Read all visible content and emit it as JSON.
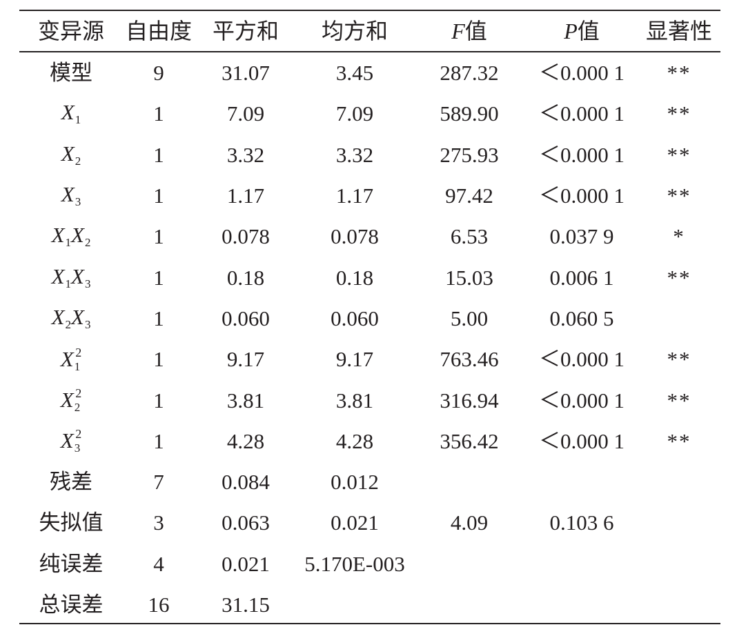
{
  "headers": {
    "source": "变异源",
    "df": "自由度",
    "ss": "平方和",
    "ms": "均方和",
    "f_letter": "F",
    "f_suffix": "值",
    "p_letter": "P",
    "p_suffix": "值",
    "significance": "显著性"
  },
  "rows": [
    {
      "source": "模型",
      "df": "9",
      "ss": "31.07",
      "ms": "3.45",
      "f": "287.32",
      "p": "＜0.000 1",
      "sig": "**"
    },
    {
      "source_var": "X",
      "source_sub": "1",
      "df": "1",
      "ss": "7.09",
      "ms": "7.09",
      "f": "589.90",
      "p": "＜0.000 1",
      "sig": "**"
    },
    {
      "source_var": "X",
      "source_sub": "2",
      "df": "1",
      "ss": "3.32",
      "ms": "3.32",
      "f": "275.93",
      "p": "＜0.000 1",
      "sig": "**"
    },
    {
      "source_var": "X",
      "source_sub": "3",
      "df": "1",
      "ss": "1.17",
      "ms": "1.17",
      "f": "97.42",
      "p": "＜0.000 1",
      "sig": "**"
    },
    {
      "source_var": "X",
      "source_sub": "1",
      "source_var2": "X",
      "source_sub2": "2",
      "df": "1",
      "ss": "0.078",
      "ms": "0.078",
      "f": "6.53",
      "p": "0.037 9",
      "sig": "*"
    },
    {
      "source_var": "X",
      "source_sub": "1",
      "source_var2": "X",
      "source_sub2": "3",
      "df": "1",
      "ss": "0.18",
      "ms": "0.18",
      "f": "15.03",
      "p": "0.006 1",
      "sig": "**"
    },
    {
      "source_var": "X",
      "source_sub": "2",
      "source_var2": "X",
      "source_sub2": "3",
      "df": "1",
      "ss": "0.060",
      "ms": "0.060",
      "f": "5.00",
      "p": "0.060 5",
      "sig": ""
    },
    {
      "source_var": "X",
      "source_sub": "1",
      "source_sup": "2",
      "df": "1",
      "ss": "9.17",
      "ms": "9.17",
      "f": "763.46",
      "p": "＜0.000 1",
      "sig": "**"
    },
    {
      "source_var": "X",
      "source_sub": "2",
      "source_sup": "2",
      "df": "1",
      "ss": "3.81",
      "ms": "3.81",
      "f": "316.94",
      "p": "＜0.000 1",
      "sig": "**"
    },
    {
      "source_var": "X",
      "source_sub": "3",
      "source_sup": "2",
      "df": "1",
      "ss": "4.28",
      "ms": "4.28",
      "f": "356.42",
      "p": "＜0.000 1",
      "sig": "**"
    },
    {
      "source": "残差",
      "df": "7",
      "ss": "0.084",
      "ms": "0.012",
      "f": "",
      "p": "",
      "sig": ""
    },
    {
      "source": "失拟值",
      "df": "3",
      "ss": "0.063",
      "ms": "0.021",
      "f": "4.09",
      "p": "0.103 6",
      "sig": ""
    },
    {
      "source": "纯误差",
      "df": "4",
      "ss": "0.021",
      "ms": "5.170E-003",
      "f": "",
      "p": "",
      "sig": ""
    },
    {
      "source": "总误差",
      "df": "16",
      "ss": "31.15",
      "ms": "",
      "f": "",
      "p": "",
      "sig": ""
    }
  ]
}
